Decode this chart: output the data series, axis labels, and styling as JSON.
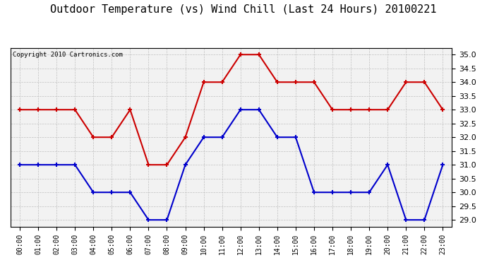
{
  "title": "Outdoor Temperature (vs) Wind Chill (Last 24 Hours) 20100221",
  "copyright": "Copyright 2010 Cartronics.com",
  "hours": [
    "00:00",
    "01:00",
    "02:00",
    "03:00",
    "04:00",
    "05:00",
    "06:00",
    "07:00",
    "08:00",
    "09:00",
    "10:00",
    "11:00",
    "12:00",
    "13:00",
    "14:00",
    "15:00",
    "16:00",
    "17:00",
    "18:00",
    "19:00",
    "20:00",
    "21:00",
    "22:00",
    "23:00"
  ],
  "temp": [
    33.0,
    33.0,
    33.0,
    33.0,
    32.0,
    32.0,
    33.0,
    31.0,
    31.0,
    32.0,
    34.0,
    34.0,
    35.0,
    35.0,
    34.0,
    34.0,
    34.0,
    33.0,
    33.0,
    33.0,
    33.0,
    34.0,
    34.0,
    33.0
  ],
  "wind_chill": [
    31.0,
    31.0,
    31.0,
    31.0,
    30.0,
    30.0,
    30.0,
    29.0,
    29.0,
    31.0,
    32.0,
    32.0,
    33.0,
    33.0,
    32.0,
    32.0,
    30.0,
    30.0,
    30.0,
    30.0,
    31.0,
    29.0,
    29.0,
    31.0
  ],
  "temp_color": "#cc0000",
  "wind_chill_color": "#0000cc",
  "bg_color": "#ffffff",
  "plot_bg_color": "#f2f2f2",
  "grid_color": "#c0c0c0",
  "ylim": [
    28.75,
    35.25
  ],
  "yticks": [
    29.0,
    29.5,
    30.0,
    30.5,
    31.0,
    31.5,
    32.0,
    32.5,
    33.0,
    33.5,
    34.0,
    34.5,
    35.0
  ],
  "title_fontsize": 11,
  "copyright_fontsize": 6.5,
  "marker": "+",
  "markersize": 5,
  "markeredgewidth": 1.5,
  "linewidth": 1.5
}
